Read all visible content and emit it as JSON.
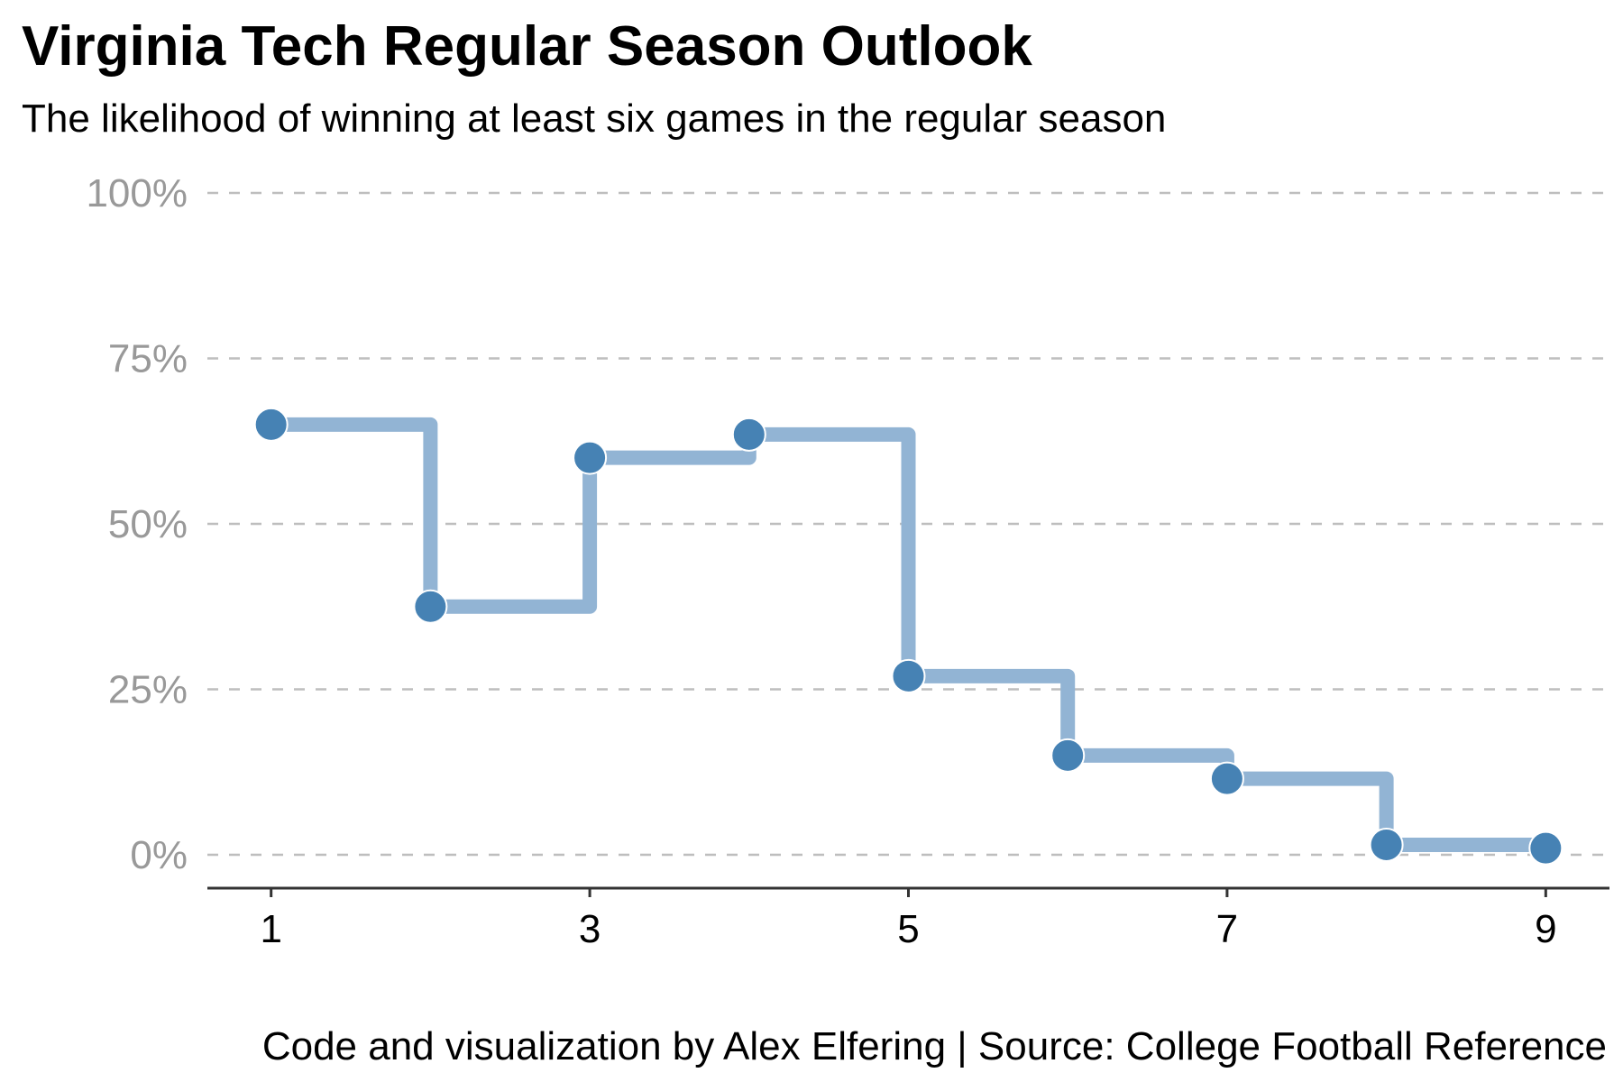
{
  "chart_data": {
    "type": "line",
    "title": "Virginia Tech Regular Season Outlook",
    "subtitle": "The likelihood of winning at least six games in the regular season",
    "caption": "Code and visualization by Alex Elfering | Source: College Football Reference",
    "step": true,
    "x": [
      1,
      2,
      3,
      4,
      5,
      6,
      7,
      8,
      9
    ],
    "y": [
      0.65,
      0.375,
      0.6,
      0.635,
      0.27,
      0.15,
      0.115,
      0.015,
      0.01
    ],
    "xlim": [
      0.6,
      9.4
    ],
    "ylim": [
      -0.05,
      1.0
    ],
    "x_ticks": [
      1,
      3,
      5,
      7,
      9
    ],
    "x_tick_labels": [
      "1",
      "3",
      "5",
      "7",
      "9"
    ],
    "y_ticks": [
      0,
      0.25,
      0.5,
      0.75,
      1.0
    ],
    "y_tick_labels": [
      "0%",
      "25%",
      "50%",
      "75%",
      "100%"
    ],
    "grid": "horizontal-dashed",
    "colors": {
      "line": "#92b4d4",
      "point": "#4682b4",
      "grid": "#bebebe",
      "ytick": "#999999",
      "axis": "#333333"
    }
  }
}
